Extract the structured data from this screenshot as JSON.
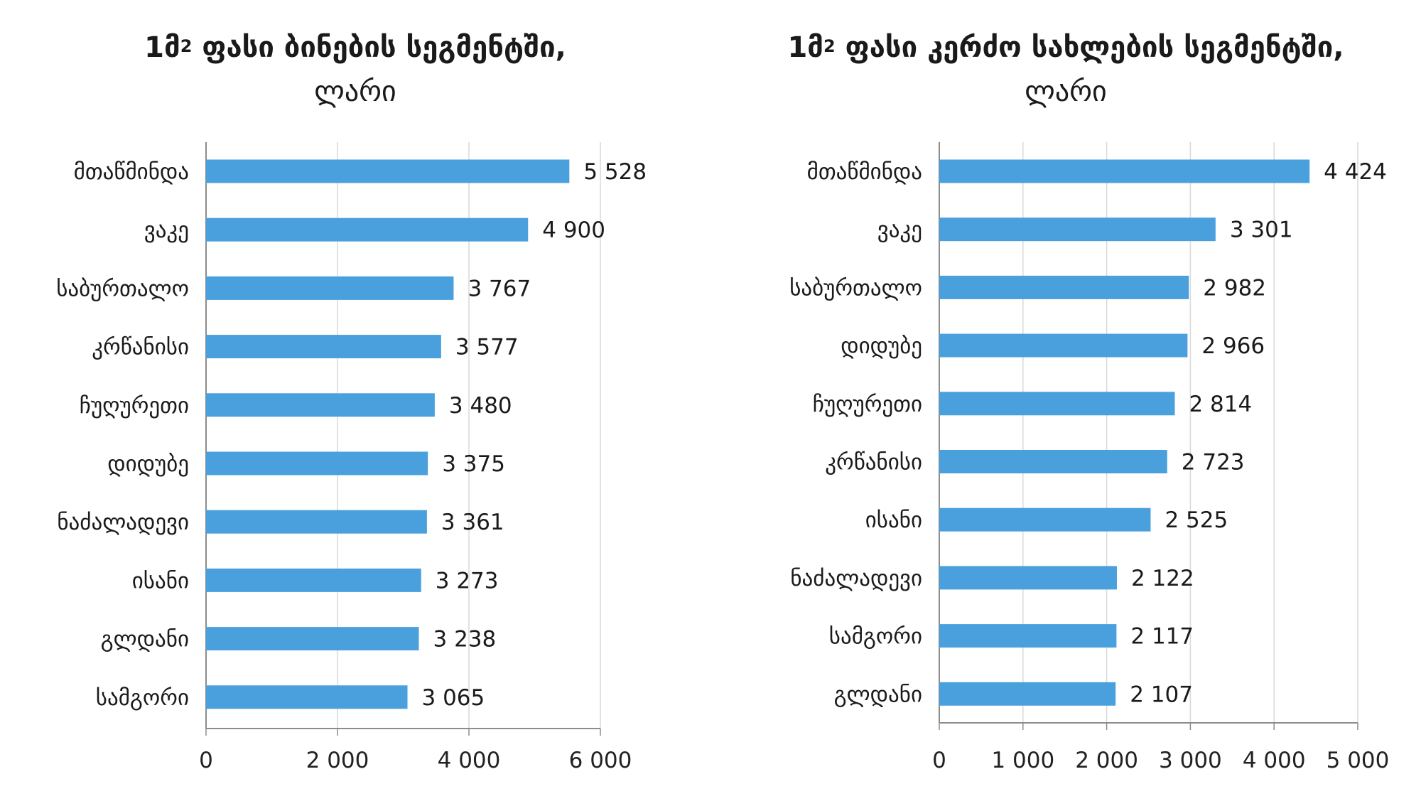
{
  "chart_data": [
    {
      "type": "bar",
      "orientation": "horizontal",
      "title_prefix": "1მ",
      "title_sup": "2",
      "title_rest": " ფასი ბინების სეგმენტში,",
      "unit": "ლარი",
      "categories": [
        "მთაწმინდა",
        "ვაკე",
        "საბურთალო",
        "კრწანისი",
        "ჩუღურეთი",
        "დიდუბე",
        "ნაძალადევი",
        "ისანი",
        "გლდანი",
        "სამგორი"
      ],
      "values": [
        5528,
        4900,
        3767,
        3577,
        3480,
        3375,
        3361,
        3273,
        3238,
        3065
      ],
      "value_labels": [
        "5 528",
        "4 900",
        "3 767",
        "3 577",
        "3 480",
        "3 375",
        "3 361",
        "3 273",
        "3 238",
        "3 065"
      ],
      "xlim": [
        0,
        6000
      ],
      "ticks": [
        0,
        2000,
        4000,
        6000
      ],
      "tick_labels": [
        "0",
        "2 000",
        "4 000",
        "6 000"
      ],
      "grid": true,
      "bar_color": "#4aa0dd"
    },
    {
      "type": "bar",
      "orientation": "horizontal",
      "title_prefix": "1მ",
      "title_sup": "2",
      "title_rest": " ფასი კერძო სახლების სეგმენტში,",
      "unit": "ლარი",
      "categories": [
        "მთაწმინდა",
        "ვაკე",
        "საბურთალო",
        "დიდუბე",
        "ჩუღურეთი",
        "კრწანისი",
        "ისანი",
        "ნაძალადევი",
        "სამგორი",
        "გლდანი"
      ],
      "values": [
        4424,
        3301,
        2982,
        2966,
        2814,
        2723,
        2525,
        2122,
        2117,
        2107
      ],
      "value_labels": [
        "4 424",
        "3 301",
        "2 982",
        "2 966",
        "2 814",
        "2 723",
        "2 525",
        "2 122",
        "2 117",
        "2 107"
      ],
      "xlim": [
        0,
        5000
      ],
      "ticks": [
        0,
        1000,
        2000,
        3000,
        4000,
        5000
      ],
      "tick_labels": [
        "0",
        "1 000",
        "2 000",
        "3 000",
        "4 000",
        "5 000"
      ],
      "grid": true,
      "bar_color": "#4aa0dd"
    }
  ]
}
